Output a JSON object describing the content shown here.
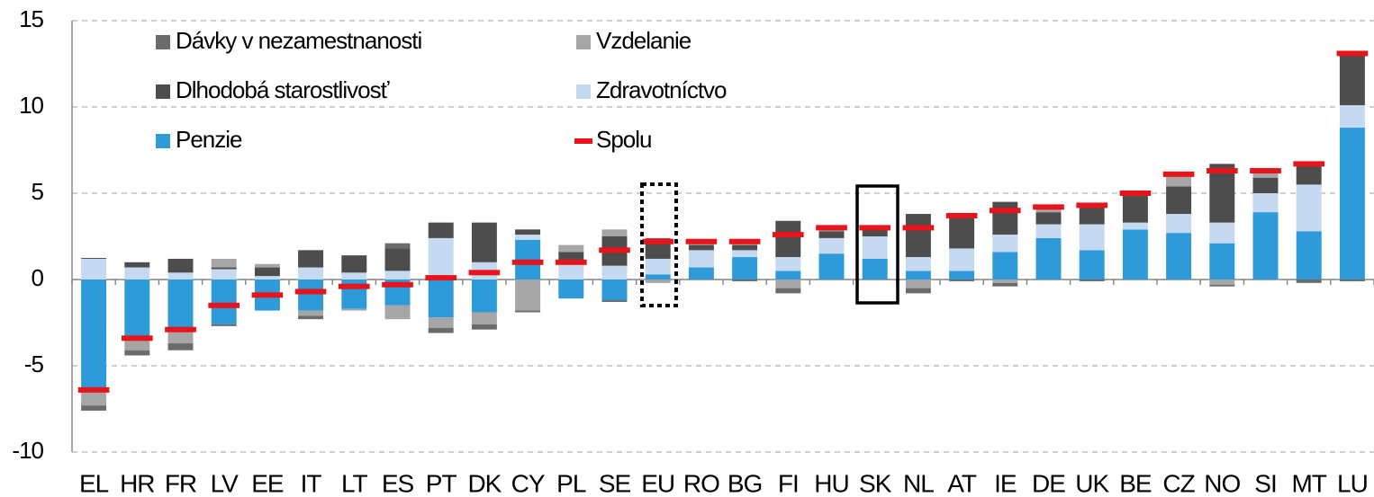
{
  "chart_data": {
    "type": "bar",
    "stacked": true,
    "categories": [
      "EL",
      "HR",
      "FR",
      "LV",
      "EE",
      "IT",
      "LT",
      "ES",
      "PT",
      "DK",
      "CY",
      "PL",
      "SE",
      "EU",
      "RO",
      "BG",
      "FI",
      "HU",
      "SK",
      "NL",
      "AT",
      "IE",
      "DE",
      "UK",
      "BE",
      "CZ",
      "NO",
      "SI",
      "MT",
      "LU"
    ],
    "series": [
      {
        "name": "Penzie",
        "color": "#2e9ad9",
        "values": [
          -6.5,
          -3.5,
          -3.0,
          -2.6,
          -1.8,
          -1.8,
          -1.7,
          -1.5,
          -2.2,
          -1.9,
          2.3,
          -1.1,
          -1.2,
          0.3,
          0.7,
          1.3,
          0.5,
          1.5,
          1.2,
          0.5,
          0.5,
          1.6,
          2.4,
          1.7,
          2.9,
          2.7,
          2.1,
          3.9,
          2.8,
          8.8
        ]
      },
      {
        "name": "Zdravotníctvo",
        "color": "#c5d9f1",
        "values": [
          1.2,
          0.7,
          0.4,
          0.6,
          0.2,
          0.7,
          0.4,
          0.5,
          2.4,
          1.0,
          0.3,
          0.9,
          0.8,
          0.9,
          1.0,
          0.4,
          0.8,
          0.9,
          1.3,
          0.8,
          1.3,
          1.0,
          0.8,
          1.5,
          0.4,
          1.1,
          1.2,
          1.1,
          2.7,
          1.3
        ]
      },
      {
        "name": "Dlhodobá starostlivosť",
        "color": "#4d4d4d",
        "values": [
          0.05,
          0.3,
          0.8,
          0.1,
          0.5,
          1.0,
          1.0,
          1.3,
          0.9,
          2.3,
          0.3,
          0.7,
          1.7,
          1.0,
          0.3,
          0.3,
          2.1,
          0.4,
          0.4,
          2.5,
          1.8,
          1.9,
          0.7,
          1.0,
          1.6,
          1.6,
          3.4,
          0.9,
          1.2,
          3.0
        ]
      },
      {
        "name": "Vzdelanie",
        "color": "#a6a6a6",
        "values": [
          -0.8,
          -0.6,
          -0.7,
          0.5,
          0.2,
          -0.3,
          -0.1,
          -0.8,
          -0.6,
          -0.7,
          -1.8,
          0.4,
          0.4,
          -0.2,
          0.2,
          0.3,
          -0.5,
          0.2,
          0.1,
          -0.5,
          0.1,
          -0.2,
          0.3,
          0.1,
          0.1,
          0.6,
          -0.3,
          0.3,
          0.1,
          0
        ]
      },
      {
        "name": "Dávky v nezamestnanosti",
        "color": "#6b6b6b",
        "values": [
          -0.3,
          -0.3,
          -0.4,
          -0.1,
          0,
          -0.2,
          0,
          0.3,
          -0.3,
          -0.3,
          -0.1,
          0,
          -0.1,
          0.2,
          0.1,
          -0.1,
          -0.3,
          0,
          0,
          -0.3,
          -0.1,
          -0.2,
          0,
          -0.1,
          0,
          0.1,
          -0.1,
          0.1,
          -0.2,
          -0.1
        ]
      }
    ],
    "totals": {
      "name": "Spolu",
      "color": "#e8131b",
      "values": [
        -6.4,
        -3.4,
        -2.9,
        -1.5,
        -0.9,
        -0.7,
        -0.4,
        -0.3,
        0.1,
        0.4,
        1.0,
        1.0,
        1.7,
        2.2,
        2.2,
        2.2,
        2.6,
        3.0,
        3.0,
        3.0,
        3.7,
        4.0,
        4.2,
        4.3,
        5.0,
        6.1,
        6.3,
        6.3,
        6.7,
        13.1
      ]
    },
    "ylim": [
      -10,
      15
    ],
    "yticks": [
      -10,
      -5,
      0,
      5,
      10,
      15
    ],
    "grid": true
  }
}
